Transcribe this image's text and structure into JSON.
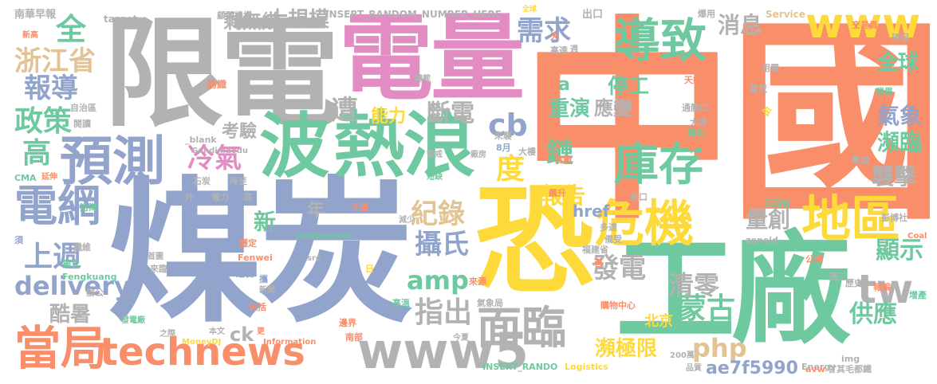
{
  "palette": {
    "orange": "#f98e6a",
    "green": "#6fc9a0",
    "blue": "#92a3cc",
    "pink": "#e38bc3",
    "lime": "#a9d04f",
    "yellow": "#fdd93a",
    "tan": "#e2c494",
    "gray": "#b2b2b2"
  },
  "words": [
    {
      "text": "中國",
      "color": "orange"
    },
    {
      "text": "煤炭",
      "color": "blue"
    },
    {
      "text": "限電",
      "color": "gray"
    },
    {
      "text": "電量",
      "color": "pink"
    },
    {
      "text": "工廠",
      "color": "green"
    },
    {
      "text": "恐",
      "color": "yellow"
    },
    {
      "text": "熱浪",
      "color": "green"
    },
    {
      "text": "波",
      "color": "green"
    },
    {
      "text": "危機",
      "color": "yellow"
    },
    {
      "text": "地區",
      "color": "yellow"
    },
    {
      "text": "預測",
      "color": "blue"
    },
    {
      "text": "導致",
      "color": "green"
    },
    {
      "text": "庫存",
      "color": "green"
    },
    {
      "text": "www",
      "color": "yellow"
    },
    {
      "text": "www5",
      "color": "gray"
    },
    {
      "text": "面臨",
      "color": "gray"
    },
    {
      "text": "technews",
      "color": "orange"
    },
    {
      "text": "當局",
      "color": "orange"
    },
    {
      "text": "電網",
      "color": "blue"
    },
    {
      "text": "delivery",
      "color": "blue"
    },
    {
      "text": "tw",
      "color": "gray"
    },
    {
      "text": "amp",
      "color": "green"
    },
    {
      "text": "php",
      "color": "tan"
    },
    {
      "text": "ae7f5990",
      "color": "blue"
    },
    {
      "text": "浙江省",
      "color": "tan"
    },
    {
      "text": "報導",
      "color": "blue"
    },
    {
      "text": "政策",
      "color": "green"
    },
    {
      "text": "高",
      "color": "green"
    },
    {
      "text": "上週",
      "color": "blue"
    },
    {
      "text": "酷暑",
      "color": "gray"
    },
    {
      "text": "全",
      "color": "green"
    },
    {
      "text": "剩無幾",
      "color": "gray"
    },
    {
      "text": "大規模",
      "color": "gray"
    },
    {
      "text": "需求",
      "color": "blue"
    },
    {
      "text": "消息",
      "color": "gray"
    },
    {
      "text": "全球",
      "color": "green"
    },
    {
      "text": "皆",
      "color": "orange"
    },
    {
      "text": "氣象",
      "color": "blue"
    },
    {
      "text": "瀕臨",
      "color": "green"
    },
    {
      "text": "襲擊",
      "color": "gray"
    },
    {
      "text": "顯示",
      "color": "green"
    },
    {
      "text": "供應",
      "color": "green"
    },
    {
      "text": "蒙古",
      "color": "green"
    },
    {
      "text": "清零",
      "color": "gray"
    },
    {
      "text": "發電",
      "color": "gray"
    },
    {
      "text": "指出",
      "color": "gray"
    },
    {
      "text": "攝氏",
      "color": "blue"
    },
    {
      "text": "紀錄",
      "color": "tan"
    },
    {
      "text": "cb",
      "color": "blue"
    },
    {
      "text": "度",
      "color": "yellow"
    },
    {
      "text": "鏈",
      "color": "green"
    },
    {
      "text": "報告",
      "color": "yellow"
    },
    {
      "text": "量創",
      "color": "gray"
    },
    {
      "text": "href",
      "color": "blue"
    },
    {
      "text": "停工",
      "color": "green"
    },
    {
      "text": "重演",
      "color": "green"
    },
    {
      "text": "應變",
      "color": "gray"
    },
    {
      "text": "遭",
      "color": "gray"
    },
    {
      "text": "能力",
      "color": "yellow"
    },
    {
      "text": "斷電",
      "color": "gray"
    },
    {
      "text": "考驗",
      "color": "gray"
    },
    {
      "text": "冷氣",
      "color": "pink"
    },
    {
      "text": "新",
      "color": "green"
    },
    {
      "text": "年",
      "color": "gray"
    },
    {
      "text": "瀕極限",
      "color": "yellow"
    },
    {
      "text": "北京",
      "color": "yellow"
    },
    {
      "text": "ck",
      "color": "gray"
    },
    {
      "text": "n",
      "color": "green"
    },
    {
      "text": "a",
      "color": "green"
    },
    {
      "text": "南華早報",
      "color": "gray"
    },
    {
      "text": "target",
      "color": "gray"
    },
    {
      "text": "顧問機構",
      "color": "gray"
    },
    {
      "text": "INSERT_RANDOM_NUMBER_HERE",
      "color": "gray"
    },
    {
      "text": "出口",
      "color": "gray"
    },
    {
      "text": "爆用",
      "color": "gray"
    },
    {
      "text": "Service",
      "color": "tan"
    },
    {
      "text": "交易員",
      "color": "orange"
    },
    {
      "text": "確保",
      "color": "gray"
    },
    {
      "text": "新高",
      "color": "orange"
    },
    {
      "text": "全球",
      "color": "yellow"
    },
    {
      "text": "高達",
      "color": "gray"
    },
    {
      "text": "天",
      "color": "orange"
    },
    {
      "text": "週",
      "color": "gray"
    },
    {
      "text": "用電",
      "color": "gray"
    },
    {
      "text": "電荒",
      "color": "gray"
    },
    {
      "text": "天數",
      "color": "orange"
    },
    {
      "text": "業界",
      "color": "green"
    },
    {
      "text": "轉載",
      "color": "gray"
    },
    {
      "text": "紡織",
      "color": "orange"
    },
    {
      "text": "自治區",
      "color": "gray"
    },
    {
      "text": "閱讀",
      "color": "gray"
    },
    {
      "text": "兩",
      "color": "orange"
    },
    {
      "text": "通關口",
      "color": "gray"
    },
    {
      "text": "令",
      "color": "yellow"
    },
    {
      "text": "大增",
      "color": "gray"
    },
    {
      "text": "惡化",
      "color": "green"
    },
    {
      "text": "來襲",
      "color": "gray"
    },
    {
      "text": "8月",
      "color": "blue"
    },
    {
      "text": "大樓",
      "color": "gray"
    },
    {
      "text": "卡",
      "color": "orange"
    },
    {
      "text": "氣溫",
      "color": "gray"
    },
    {
      "text": "_blank",
      "color": "gray"
    },
    {
      "text": "Gandimaodu",
      "color": "gray"
    },
    {
      "text": "警戒",
      "color": "gray"
    },
    {
      "text": "廠房",
      "color": "gray"
    },
    {
      "text": "信賴",
      "color": "orange"
    },
    {
      "text": "聚酯",
      "color": "orange"
    },
    {
      "text": "CMA",
      "color": "green"
    },
    {
      "text": "延伸",
      "color": "orange"
    },
    {
      "text": "石炭",
      "color": "gray"
    },
    {
      "text": "降至",
      "color": "gray"
    },
    {
      "text": "短缺",
      "color": "green"
    },
    {
      "text": "飆升",
      "color": "orange"
    },
    {
      "text": "沿海",
      "color": "green"
    },
    {
      "text": "外",
      "color": "gray"
    },
    {
      "text": "電力",
      "color": "gray"
    },
    {
      "text": "底",
      "color": "gray"
    },
    {
      "text": "干擾",
      "color": "orange"
    },
    {
      "text": "進口",
      "color": "gray"
    },
    {
      "text": "江西省",
      "color": "green"
    },
    {
      "text": "彭博社",
      "color": "gray"
    },
    {
      "text": "Coal",
      "color": "orange"
    },
    {
      "text": "須",
      "color": "blue"
    },
    {
      "text": "纖維",
      "color": "gray"
    },
    {
      "text": "穩定",
      "color": "orange"
    },
    {
      "text": "shutterstock",
      "color": "green"
    },
    {
      "text": "減少",
      "color": "gray"
    },
    {
      "text": "多達",
      "color": "gray"
    },
    {
      "text": "備受",
      "color": "gray"
    },
    {
      "text": "zoneid",
      "color": "gray"
    },
    {
      "text": "獨立",
      "color": "green"
    },
    {
      "text": "首圖",
      "color": "gray"
    },
    {
      "text": "Fenwei",
      "color": "orange"
    },
    {
      "text": "src",
      "color": "gray"
    },
    {
      "text": "福建省",
      "color": "gray"
    },
    {
      "text": "菩",
      "color": "orange"
    },
    {
      "text": "公噸",
      "color": "orange"
    },
    {
      "text": "週三",
      "color": "gray"
    },
    {
      "text": "Fengkuang",
      "color": "green"
    },
    {
      "text": "來臨",
      "color": "gray"
    },
    {
      "text": "迫使",
      "color": "blue"
    },
    {
      "text": "攜",
      "color": "blue"
    },
    {
      "text": "日",
      "color": "yellow"
    },
    {
      "text": "來源",
      "color": "orange"
    },
    {
      "text": "歷史",
      "color": "gray"
    },
    {
      "text": "報編",
      "color": "orange"
    },
    {
      "text": "增產",
      "color": "green"
    },
    {
      "text": "辦公",
      "color": "gray"
    },
    {
      "text": "新聞",
      "color": "gray"
    },
    {
      "text": "高溫",
      "color": "green"
    },
    {
      "text": "氣象局",
      "color": "gray"
    },
    {
      "text": "包括",
      "color": "orange"
    },
    {
      "text": "購物中心",
      "color": "orange"
    },
    {
      "text": "發電廠",
      "color": "green"
    },
    {
      "text": "之際",
      "color": "gray"
    },
    {
      "text": "本文",
      "color": "gray"
    },
    {
      "text": "更",
      "color": "orange"
    },
    {
      "text": "邊界",
      "color": "orange"
    },
    {
      "text": "今夏",
      "color": "gray"
    },
    {
      "text": "MoneyDJ",
      "color": "yellow"
    },
    {
      "text": "Information",
      "color": "orange"
    },
    {
      "text": "南部",
      "color": "orange"
    },
    {
      "text": "INSERT_RANDO",
      "color": "green"
    },
    {
      "text": "Logistics",
      "color": "yellow"
    },
    {
      "text": "200萬",
      "color": "gray"
    },
    {
      "text": "img",
      "color": "gray"
    },
    {
      "text": "Energy",
      "color": "gray"
    },
    {
      "text": "品質",
      "color": "gray"
    },
    {
      "text": "avw",
      "color": "orange"
    },
    {
      "text": "甘其毛都鐵",
      "color": "gray"
    }
  ]
}
